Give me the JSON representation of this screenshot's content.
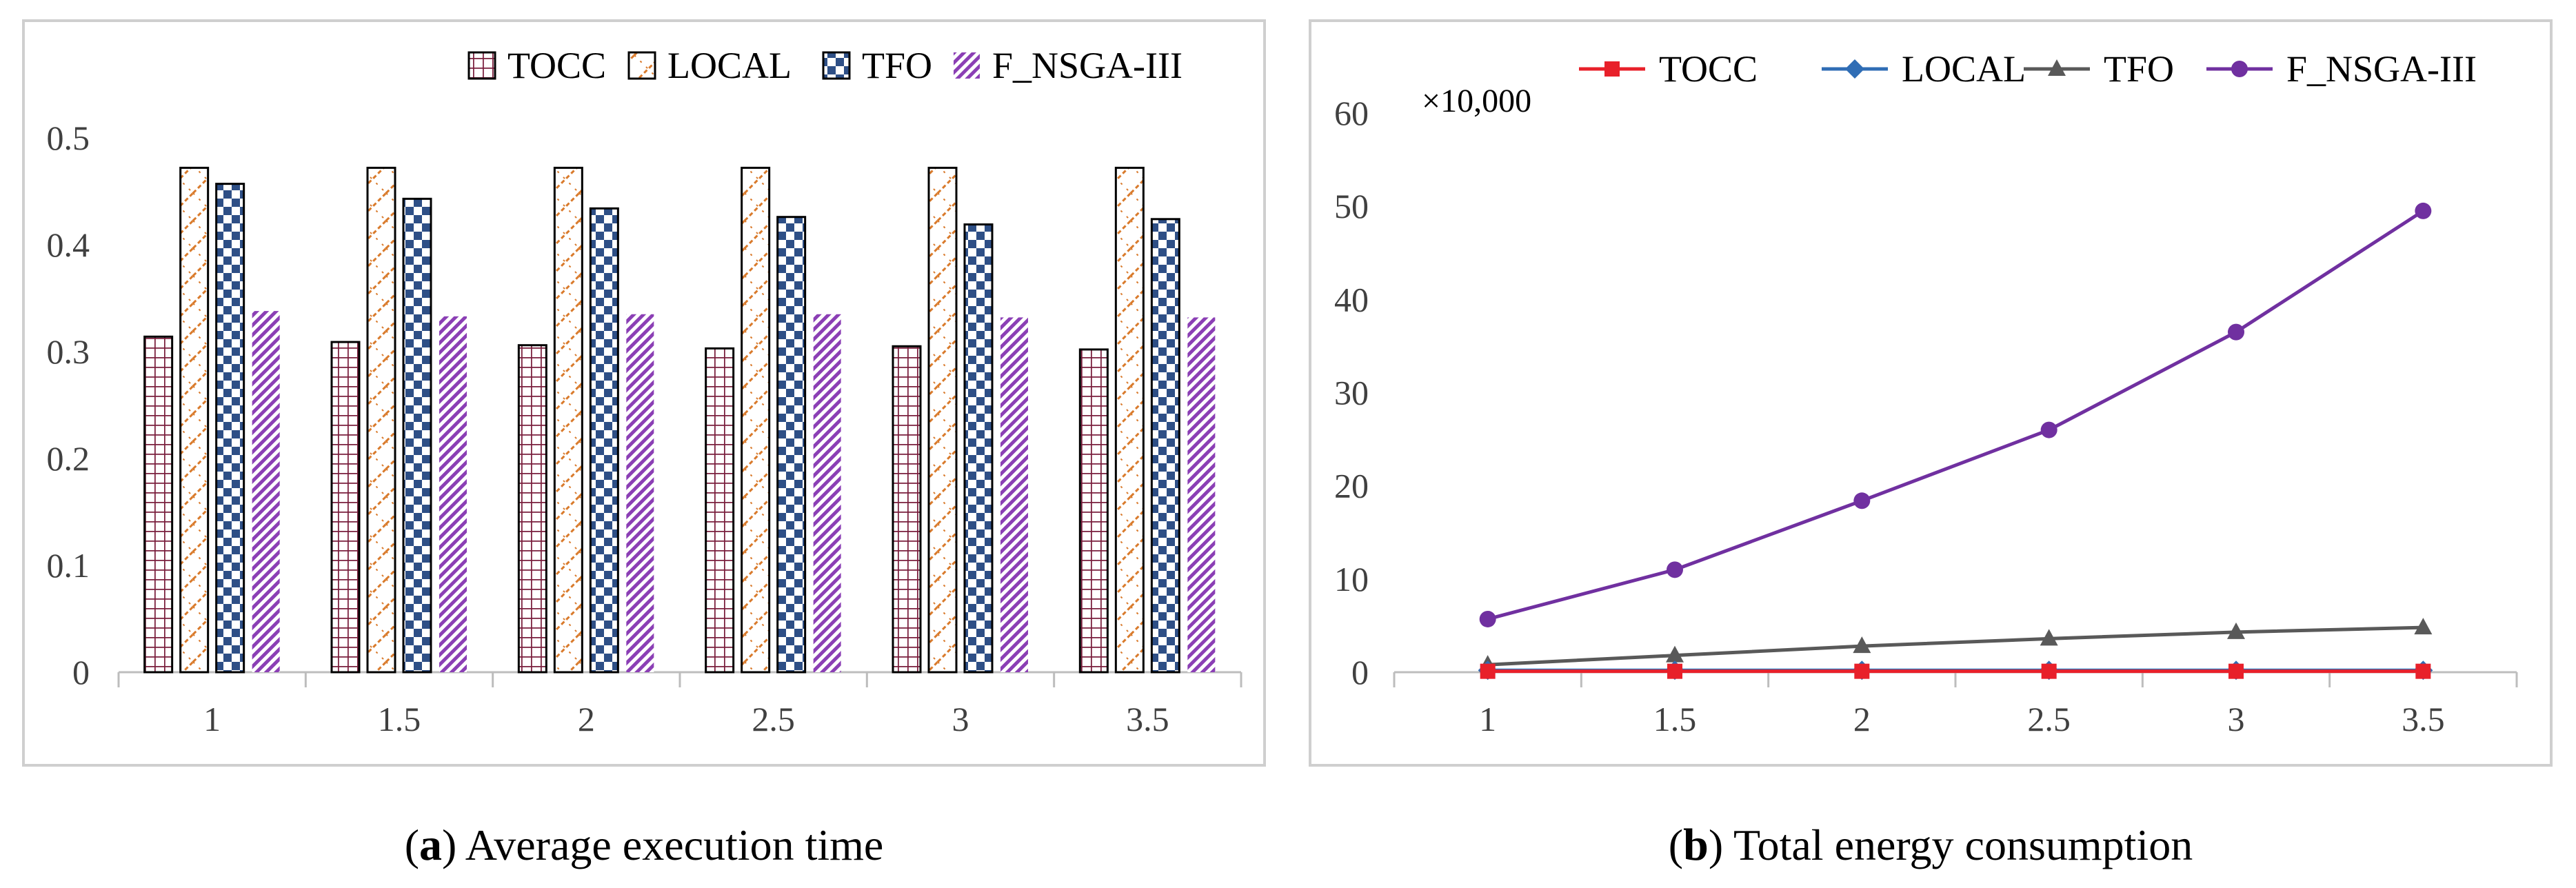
{
  "chart_data": [
    {
      "type": "bar",
      "panel": "a",
      "caption_letter": "a",
      "caption_text": "Average execution time",
      "categories": [
        "1",
        "1.5",
        "2",
        "2.5",
        "3",
        "3.5"
      ],
      "ylim": [
        0,
        0.5
      ],
      "yticks": [
        0,
        0.1,
        0.2,
        0.3,
        0.4,
        0.5
      ],
      "ytick_labels": [
        "0",
        "0.1",
        "0.2",
        "0.3",
        "0.4",
        "0.5"
      ],
      "legend_position": "top-right",
      "series": [
        {
          "name": "TOCC",
          "color": "#7a1f3d",
          "pattern": "grid",
          "values": [
            0.314,
            0.309,
            0.306,
            0.303,
            0.305,
            0.302
          ]
        },
        {
          "name": "LOCAL",
          "color": "#d97a2b",
          "pattern": "zigzag",
          "values": [
            0.472,
            0.472,
            0.472,
            0.472,
            0.472,
            0.472
          ]
        },
        {
          "name": "TFO",
          "color": "#2e4f86",
          "pattern": "checker",
          "values": [
            0.457,
            0.443,
            0.434,
            0.426,
            0.419,
            0.424
          ]
        },
        {
          "name": "F_NSGA-III",
          "color": "#8b3fb5",
          "pattern": "diagonal",
          "values": [
            0.338,
            0.333,
            0.335,
            0.335,
            0.332,
            0.332
          ]
        }
      ]
    },
    {
      "type": "line",
      "panel": "b",
      "caption_letter": "b",
      "caption_text": "Total energy consumption",
      "multiplier_label": "×10,000",
      "categories": [
        "1",
        "1.5",
        "2",
        "2.5",
        "3",
        "3.5"
      ],
      "ylim": [
        0,
        60
      ],
      "yticks": [
        0,
        10,
        20,
        30,
        40,
        50,
        60
      ],
      "ytick_labels": [
        "0",
        "10",
        "20",
        "30",
        "40",
        "50",
        "60"
      ],
      "legend_position": "top",
      "series": [
        {
          "name": "TOCC",
          "color": "#e8202a",
          "marker": "square",
          "values": [
            0.1,
            0.1,
            0.1,
            0.1,
            0.1,
            0.1
          ]
        },
        {
          "name": "LOCAL",
          "color": "#2f6db5",
          "marker": "diamond",
          "values": [
            0.2,
            0.2,
            0.2,
            0.2,
            0.2,
            0.2
          ]
        },
        {
          "name": "TFO",
          "color": "#595959",
          "marker": "triangle",
          "values": [
            0.8,
            1.8,
            2.8,
            3.6,
            4.3,
            4.8
          ]
        },
        {
          "name": "F_NSGA-III",
          "color": "#7030a0",
          "marker": "circle",
          "values": [
            5.7,
            11.0,
            18.4,
            26.0,
            36.5,
            49.5
          ]
        }
      ]
    }
  ]
}
